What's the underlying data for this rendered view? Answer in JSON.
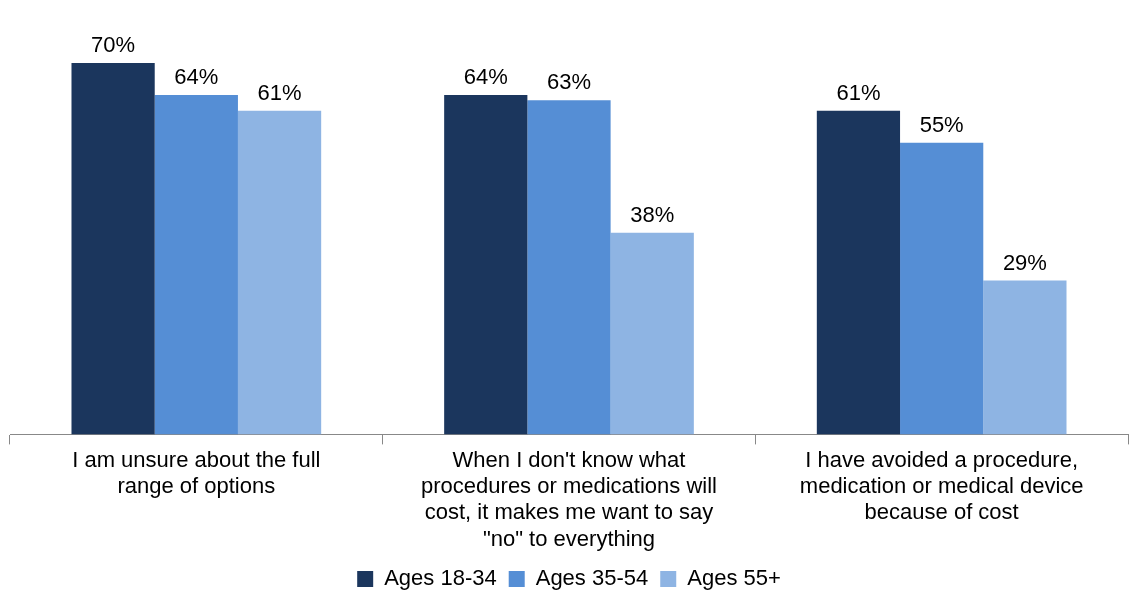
{
  "chart_data": {
    "type": "bar",
    "categories": [
      "I am unsure about the full range of options",
      "When I don't know what procedures or medications will cost, it makes me want to say \"no\" to everything",
      "I have avoided a procedure, medication or medical device because of cost"
    ],
    "series": [
      {
        "name": "Ages 18-34",
        "color": "#1b365d",
        "values": [
          70,
          64,
          61
        ],
        "value_labels": [
          "70%",
          "64%",
          "61%"
        ]
      },
      {
        "name": "Ages 35-54",
        "color": "#558ed5",
        "values": [
          64,
          63,
          55
        ],
        "value_labels": [
          "64%",
          "63%",
          "55%"
        ]
      },
      {
        "name": "Ages 55+",
        "color": "#8eb4e3",
        "values": [
          61,
          38,
          29
        ],
        "value_labels": [
          "61%",
          "38%",
          "29%"
        ]
      }
    ],
    "legend": "bottom"
  }
}
